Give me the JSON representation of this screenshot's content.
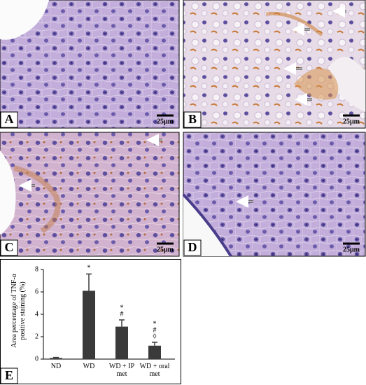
{
  "panels": [
    {
      "letter": "A",
      "scale": "25μm"
    },
    {
      "letter": "B",
      "scale": "25μm"
    },
    {
      "letter": "C",
      "scale": "25μm"
    },
    {
      "letter": "D",
      "scale": "25μm"
    }
  ],
  "chart_data": {
    "type": "bar",
    "panel_letter": "E",
    "ylabel": "Area percentage of TNF-α positive staining (%)",
    "categories": [
      "ND",
      "WD",
      "WD + IP met",
      "WD + oral met"
    ],
    "values": [
      0.1,
      6.1,
      2.9,
      1.2
    ],
    "errors": [
      0.05,
      1.5,
      0.6,
      0.3
    ],
    "annotations": [
      [],
      [
        "*"
      ],
      [
        "*",
        "#"
      ],
      [
        "*",
        "#",
        "◊"
      ]
    ],
    "color": "#3a3a3a",
    "ylim": [
      0,
      8
    ],
    "yticks": [
      0,
      2,
      4,
      6,
      8
    ]
  }
}
